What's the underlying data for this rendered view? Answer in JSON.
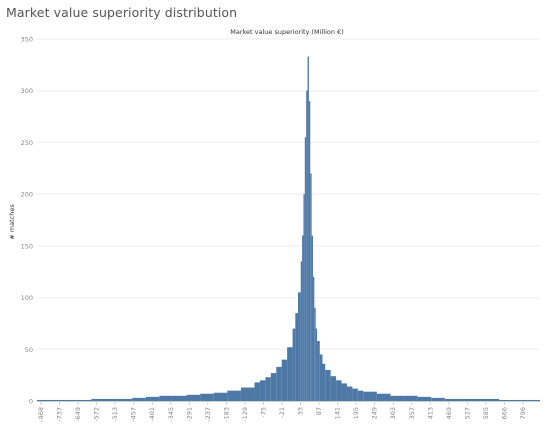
{
  "page": {
    "title": "Market value superiority distribution"
  },
  "colors": {
    "bar": "#4e79a7",
    "grid": "#eeeeee",
    "axis_text": "#888888",
    "title_text": "#555555"
  },
  "chart_data": {
    "type": "bar",
    "title": "",
    "xlabel": "Market value superiority (Million €)",
    "ylabel": "# matches",
    "ylim": [
      0,
      350
    ],
    "xlim": [
      -1000,
      850
    ],
    "y_ticks": [
      0,
      50,
      100,
      150,
      200,
      250,
      300,
      350
    ],
    "x_tick_labels": [
      "-968",
      "-737",
      "-649",
      "-572",
      "-513",
      "-457",
      "-401",
      "-345",
      "-291",
      "-237",
      "-183",
      "-129",
      "-75",
      "-21",
      "33",
      "87",
      "141",
      "195",
      "249",
      "303",
      "357",
      "413",
      "469",
      "527",
      "585",
      "666",
      "796"
    ],
    "grid": true,
    "series": [
      {
        "x": [
          -1000,
          -900,
          -800,
          -700,
          -650,
          -600,
          -550,
          -500,
          -450,
          -400,
          -350,
          -300,
          -250,
          -200,
          -180,
          -160,
          -140,
          -120,
          -100,
          -80,
          -60,
          -50,
          -40,
          -30,
          -25,
          -20,
          -15,
          -10,
          -5,
          0,
          5,
          10,
          15,
          20,
          25,
          30,
          40,
          50,
          60,
          80,
          100,
          120,
          140,
          160,
          180,
          200,
          250,
          300,
          350,
          400,
          450,
          500,
          550,
          600,
          700,
          800,
          850
        ],
        "values": [
          1,
          1,
          2,
          2,
          3,
          4,
          5,
          5,
          6,
          7,
          8,
          10,
          13,
          18,
          20,
          23,
          27,
          33,
          40,
          52,
          70,
          85,
          105,
          135,
          160,
          200,
          255,
          300,
          333,
          290,
          220,
          160,
          120,
          90,
          70,
          58,
          45,
          36,
          30,
          24,
          20,
          17,
          14,
          12,
          10,
          9,
          7,
          5,
          5,
          4,
          3,
          2,
          2,
          2,
          1,
          1,
          1
        ]
      }
    ]
  }
}
